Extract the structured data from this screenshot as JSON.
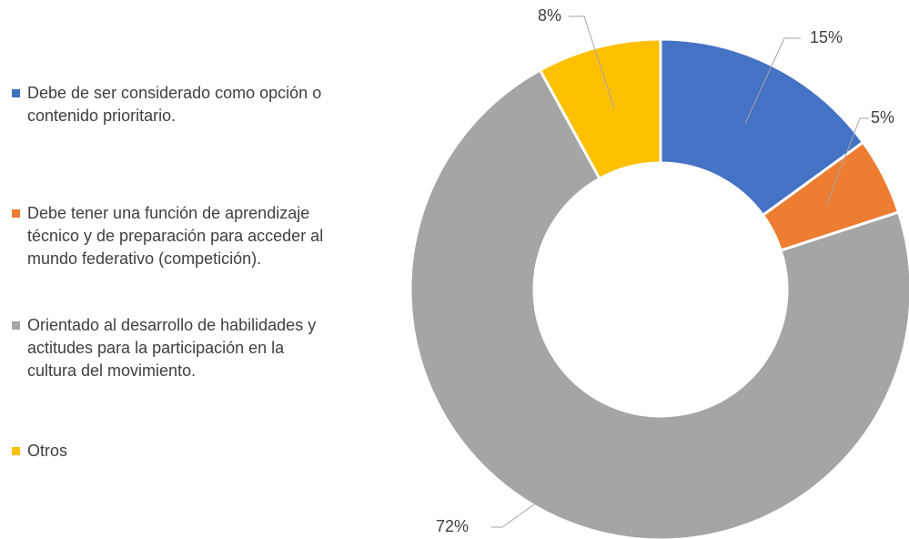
{
  "chart_data": {
    "type": "donut",
    "categories": [
      "Debe de ser considerado como opción o contenido prioritario.",
      "Debe tener una función de aprendizaje técnico y de preparación para acceder al mundo federativo (competición).",
      "Orientado al desarrollo de habilidades y actitudes para la participación en la cultura del movimiento.",
      "Otros"
    ],
    "values": [
      15,
      5,
      72,
      8
    ],
    "value_labels": [
      "15%",
      "5%",
      "72%",
      "8%"
    ],
    "colors": [
      "#4472c4",
      "#ed7d31",
      "#a5a5a5",
      "#ffc000"
    ],
    "legend": "left"
  }
}
